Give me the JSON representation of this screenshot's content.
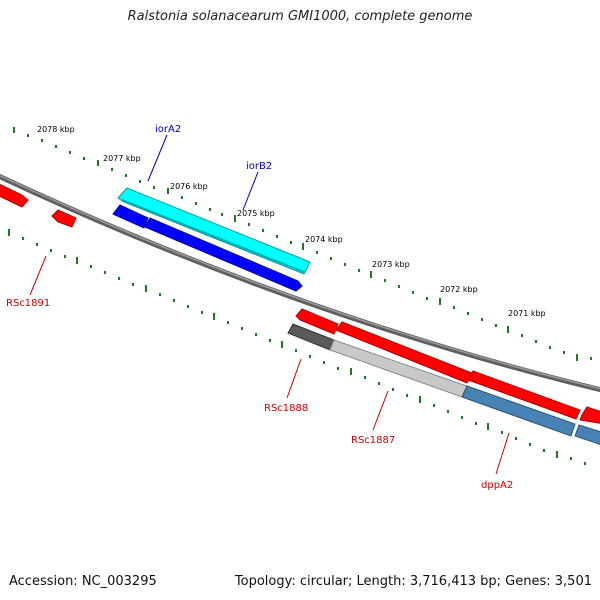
{
  "header": {
    "title": "Ralstonia solanacearum GMI1000, complete genome"
  },
  "footer": {
    "accession": "Accession: NC_003295",
    "summary": "Topology: circular; Length: 3,716,413 bp; Genes: 3,501"
  },
  "scale": {
    "labels": [
      "2078 kbp",
      "2077 kbp",
      "2076 kbp",
      "2075 kbp",
      "2074 kbp",
      "2073 kbp",
      "2072 kbp",
      "2071 kbp"
    ]
  },
  "genes": {
    "iorA2": "iorA2",
    "iorB2": "iorB2",
    "RSc1891": "RSc1891",
    "RSc1888": "RSc1888",
    "RSc1887": "RSc1887",
    "dppA2": "dppA2"
  },
  "colors": {
    "background": "#ffffff",
    "backbone": "#7a7a7a",
    "tick": "#1f7a1f",
    "cds_red": "#ff0000",
    "cds_cyan": "#00ffff",
    "cds_blue": "#0000ff",
    "cds_steel": "#4682b4",
    "cds_gray_dark": "#5a5a5a",
    "cds_gray_light": "#c8c8c8",
    "label_blue": "#0000aa",
    "label_red": "#cc0000"
  }
}
